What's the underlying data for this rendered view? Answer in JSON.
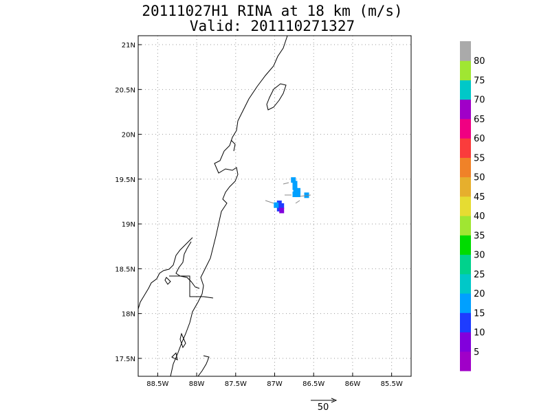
{
  "title": "20111027H1 RINA at 18 km (m/s)",
  "subtitle": "Valid: 201110271327",
  "map": {
    "lat_ticks": [
      "21N",
      "20.5N",
      "20N",
      "19.5N",
      "19N",
      "18.5N",
      "18N",
      "17.5N"
    ],
    "lon_ticks": [
      "88.5W",
      "88W",
      "87.5W",
      "87W",
      "86.5W",
      "86W",
      "85.5W"
    ],
    "lon_range": [
      -88.75,
      -85.25
    ],
    "lat_range": [
      17.3,
      21.1
    ],
    "grid": true,
    "coast_color": "#000000",
    "grid_color": "#999999"
  },
  "colorbar": {
    "labels": [
      "5",
      "10",
      "15",
      "20",
      "25",
      "30",
      "35",
      "40",
      "45",
      "50",
      "55",
      "60",
      "65",
      "70",
      "75",
      "80"
    ],
    "colors": [
      "#a000c8",
      "#8200dc",
      "#1e3cff",
      "#00a0ff",
      "#00c8c8",
      "#00d28c",
      "#00dc00",
      "#a0e632",
      "#e6dc32",
      "#e6af2d",
      "#f08228",
      "#fa3c3c",
      "#f00082",
      "#a000c8",
      "#00c8c8",
      "#a0e632",
      "#aaaaaa"
    ]
  },
  "wind_cells": [
    {
      "lon": -86.76,
      "lat": 19.49,
      "speed": 15
    },
    {
      "lon": -86.74,
      "lat": 19.45,
      "speed": 15
    },
    {
      "lon": -86.74,
      "lat": 19.41,
      "speed": 15
    },
    {
      "lon": -86.73,
      "lat": 19.37,
      "speed": 15
    },
    {
      "lon": -86.7,
      "lat": 19.37,
      "speed": 15
    },
    {
      "lon": -86.7,
      "lat": 19.33,
      "speed": 15
    },
    {
      "lon": -86.74,
      "lat": 19.33,
      "speed": 15
    },
    {
      "lon": -86.59,
      "lat": 19.32,
      "speed": 15
    },
    {
      "lon": -86.94,
      "lat": 19.23,
      "speed": 10
    },
    {
      "lon": -86.91,
      "lat": 19.2,
      "speed": 10
    },
    {
      "lon": -86.94,
      "lat": 19.17,
      "speed": 10
    },
    {
      "lon": -86.91,
      "lat": 19.15,
      "speed": 5
    },
    {
      "lon": -86.98,
      "lat": 19.21,
      "speed": 15
    }
  ],
  "reference_vector": {
    "label": "50"
  }
}
